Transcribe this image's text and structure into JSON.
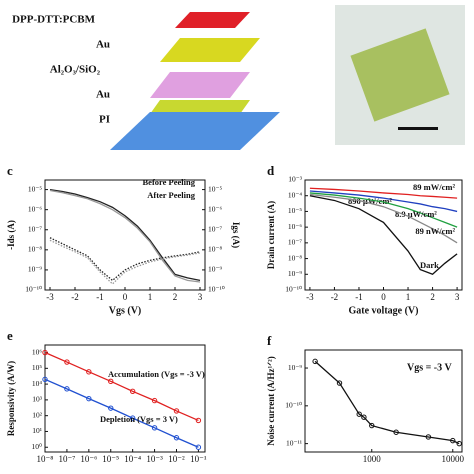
{
  "diagram": {
    "layers": [
      "DPP-DTT:PCBM",
      "Au",
      "Al₂O₃/SiO₂",
      "Au",
      "PI"
    ]
  },
  "chart_data": [
    {
      "type": "line",
      "label": "c",
      "xlabel": "Vgs (V)",
      "ylabel": "-Ids (A)",
      "y2label": "Igs (A)",
      "ylog": true,
      "xlim": [
        -3.2,
        3.2
      ],
      "xticks": [
        -3,
        -2,
        -1,
        0,
        1,
        2,
        3
      ],
      "ylim": [
        1e-10,
        3e-05
      ],
      "yticks": [
        {
          "value": 1e-10,
          "label": "10⁻¹⁰"
        },
        {
          "value": 1e-09,
          "label": "10⁻⁹"
        },
        {
          "value": 1e-08,
          "label": "10⁻⁸"
        },
        {
          "value": 1e-07,
          "label": "10⁻⁷"
        },
        {
          "value": 1e-06,
          "label": "10⁻⁶"
        },
        {
          "value": 1e-05,
          "label": "10⁻⁵"
        }
      ],
      "y2lim": [
        1e-10,
        3e-05
      ],
      "y2ticks": [
        {
          "value": 1e-10,
          "label": "10⁻¹⁰"
        },
        {
          "value": 1e-09,
          "label": "10⁻⁹"
        },
        {
          "value": 1e-08,
          "label": "10⁻⁸"
        },
        {
          "value": 1e-07,
          "label": "10⁻⁷"
        },
        {
          "value": 1e-06,
          "label": "10⁻⁶"
        },
        {
          "value": 1e-05,
          "label": "10⁻⁵"
        }
      ],
      "x": [
        -3,
        -2.5,
        -2,
        -1.5,
        -1,
        -0.5,
        0,
        0.5,
        1,
        1.5,
        2,
        2.5,
        3
      ],
      "series": [
        {
          "name": "Before Peeling",
          "color": "#222222",
          "values": [
            1e-05,
            8e-06,
            6e-06,
            4e-06,
            2.5e-06,
            1.3e-06,
            5e-07,
            1.5e-07,
            3e-08,
            4e-09,
            6e-10,
            4e-10,
            3e-10
          ]
        },
        {
          "name": "After Peeling",
          "color": "#999999",
          "values": [
            9e-06,
            7e-06,
            5e-06,
            3.5e-06,
            2e-06,
            1e-06,
            4e-07,
            1.2e-07,
            2.5e-08,
            3e-09,
            5e-10,
            3e-10,
            2.5e-10
          ]
        },
        {
          "color": "#222222",
          "style": "dotted",
          "axis": "y2",
          "values": [
            4e-08,
            2e-08,
            1e-08,
            5e-09,
            1e-09,
            3e-10,
            1e-09,
            2e-09,
            3e-09,
            4e-09,
            5e-09,
            6e-09,
            8e-09
          ]
        },
        {
          "color": "#999999",
          "style": "dotted",
          "axis": "y2",
          "values": [
            3e-08,
            1.5e-08,
            8e-09,
            4e-09,
            8e-10,
            2e-10,
            8e-10,
            1.5e-09,
            2.5e-09,
            3.5e-09,
            4.5e-09,
            5.5e-09,
            7e-09
          ]
        }
      ]
    },
    {
      "type": "line",
      "label": "d",
      "xlabel": "Gate voltage (V)",
      "ylabel": "Drain current (A)",
      "ylog": true,
      "xlim": [
        -3.2,
        3.2
      ],
      "xticks": [
        -3,
        -2,
        -1,
        0,
        1,
        2,
        3
      ],
      "ylim": [
        1e-10,
        0.001
      ],
      "yticks": [
        {
          "value": 1e-10,
          "label": "10⁻¹⁰"
        },
        {
          "value": 1e-09,
          "label": "10⁻⁹"
        },
        {
          "value": 1e-08,
          "label": "10⁻⁸"
        },
        {
          "value": 1e-07,
          "label": "10⁻⁷"
        },
        {
          "value": 1e-06,
          "label": "10⁻⁶"
        },
        {
          "value": 1e-05,
          "label": "10⁻⁵"
        },
        {
          "value": 0.0001,
          "label": "10⁻⁴"
        },
        {
          "value": 0.001,
          "label": "10⁻³"
        }
      ],
      "x": [
        -3,
        -2,
        -1,
        0,
        1,
        1.5,
        2,
        2.5,
        3
      ],
      "series": [
        {
          "name": "89 mW/cm²",
          "color": "#e02020",
          "values": [
            0.0003,
            0.00025,
            0.0002,
            0.00015,
            0.00012,
            0.0001,
            9e-05,
            8e-05,
            7e-05
          ]
        },
        {
          "name": "890 μW/cm²",
          "color": "#2040c0",
          "values": [
            0.0002,
            0.00015,
            0.00011,
            7e-05,
            4e-05,
            3e-05,
            2e-05,
            1.5e-05,
            1e-05
          ]
        },
        {
          "name": "8.9 μW/cm²",
          "color": "#20a040",
          "values": [
            0.00015,
            0.00011,
            7e-05,
            4e-05,
            1.5e-05,
            8e-06,
            4e-06,
            2e-06,
            1e-06
          ]
        },
        {
          "name": "89 nW/cm²",
          "color": "#888888",
          "values": [
            0.00012,
            8e-05,
            5e-05,
            2e-05,
            5e-06,
            2e-06,
            8e-07,
            3e-07,
            1e-07
          ]
        },
        {
          "name": "Dark",
          "color": "#111111",
          "values": [
            0.0001,
            5e-05,
            1.5e-05,
            2e-06,
            3e-08,
            2e-09,
            1e-09,
            5e-09,
            2e-08
          ]
        }
      ]
    },
    {
      "type": "line",
      "label": "e",
      "ylabel": "Responsivity (A/W)",
      "xlog": true,
      "ylog": true,
      "xlim": [
        1e-08,
        0.2
      ],
      "xticks": [
        {
          "value": 1e-08,
          "label": "10⁻⁸"
        },
        {
          "value": 1e-07,
          "label": "10⁻⁷"
        },
        {
          "value": 1e-06,
          "label": "10⁻⁶"
        },
        {
          "value": 1e-05,
          "label": "10⁻⁵"
        },
        {
          "value": 0.0001,
          "label": "10⁻⁴"
        },
        {
          "value": 0.001,
          "label": "10⁻³"
        },
        {
          "value": 0.01,
          "label": "10⁻²"
        },
        {
          "value": 0.1,
          "label": "10⁻¹"
        }
      ],
      "ylim": [
        0.5,
        3000000.0
      ],
      "yticks": [
        {
          "value": 1,
          "label": "10⁰"
        },
        {
          "value": 10,
          "label": "10¹"
        },
        {
          "value": 100,
          "label": "10²"
        },
        {
          "value": 1000,
          "label": "10³"
        },
        {
          "value": 10000,
          "label": "10⁴"
        },
        {
          "value": 100000,
          "label": "10⁵"
        },
        {
          "value": 1000000,
          "label": "10⁶"
        }
      ],
      "x": [
        1e-08,
        1e-07,
        1e-06,
        1e-05,
        0.0001,
        0.001,
        0.01,
        0.1
      ],
      "series": [
        {
          "name": "Accumulation (Vgs = -3 V)",
          "color": "#e02020",
          "marker": true,
          "values": [
            1000000.0,
            250000.0,
            60000.0,
            15000.0,
            3500,
            900,
            200,
            50
          ]
        },
        {
          "name": "Depletion (Vgs = 3 V)",
          "color": "#2050d0",
          "marker": true,
          "values": [
            20000.0,
            5000,
            1200,
            300,
            70,
            17,
            4,
            1
          ]
        }
      ]
    },
    {
      "type": "line",
      "label": "f",
      "ylabel": "Noise current (A/Hz¹ᐟ²)",
      "annotation": "Vgs = -3 V",
      "xlog": true,
      "ylog": true,
      "xlim": [
        150,
        13000
      ],
      "xticks": [
        1000,
        10000
      ],
      "ylim": [
        6e-12,
        3e-09
      ],
      "yticks": [
        {
          "value": 1e-11,
          "label": "10⁻¹¹"
        },
        {
          "value": 1e-10,
          "label": "10⁻¹⁰"
        },
        {
          "value": 1e-09,
          "label": "10⁻⁹"
        }
      ],
      "x": [
        200,
        400,
        700,
        800,
        1000,
        2000,
        5000,
        10000,
        12000
      ],
      "series": [
        {
          "color": "#111111",
          "marker": true,
          "values": [
            1.5e-09,
            4e-10,
            6e-11,
            5e-11,
            3e-11,
            2e-11,
            1.5e-11,
            1.2e-11,
            1e-11
          ]
        }
      ]
    }
  ]
}
